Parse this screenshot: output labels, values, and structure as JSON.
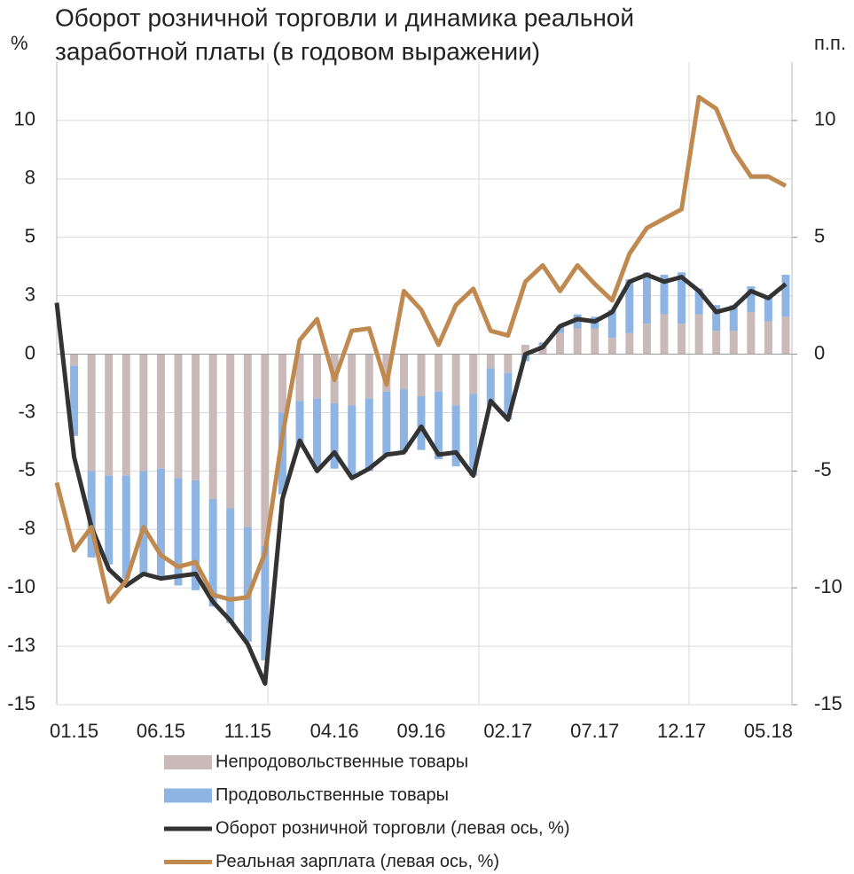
{
  "chart_data": {
    "type": "bar-line",
    "title": [
      "Оборот розничной торговли и динамика реальной",
      "заработной платы (в годовом выражении)"
    ],
    "ylabel": "%",
    "y2label": "п.п.",
    "categories": [
      null,
      "01.15",
      null,
      null,
      null,
      null,
      "06.15",
      null,
      null,
      null,
      null,
      "11.15",
      null,
      null,
      null,
      null,
      "04.16",
      null,
      null,
      null,
      null,
      "09.16",
      null,
      null,
      null,
      null,
      "02.17",
      null,
      null,
      null,
      null,
      "07.17",
      null,
      null,
      null,
      null,
      "12.17",
      null,
      null,
      null,
      null,
      "05.18",
      null
    ],
    "ylim": [
      -15,
      12.5
    ],
    "yticks": [
      -15,
      {
        "value": -12.5,
        "label": "-13"
      },
      -10,
      {
        "value": -7.5,
        "label": "-8"
      },
      -5,
      {
        "value": -2.5,
        "label": "-3"
      },
      0,
      {
        "value": 2.5,
        "label": "3"
      },
      5,
      {
        "value": 7.5,
        "label": "8"
      },
      10
    ],
    "y2lim": [
      -15,
      12.5
    ],
    "y2ticks": [
      -15,
      -10,
      -5,
      0,
      5,
      10
    ],
    "grid": true,
    "series": [
      {
        "name": "Непродовольственные товары",
        "kind": "bar",
        "axis": "y2",
        "color": "#c9b9b9",
        "values": [
          null,
          -0.5,
          -5.0,
          -5.2,
          -5.2,
          -5.0,
          -4.9,
          -5.3,
          -5.4,
          -6.2,
          -6.6,
          -7.4,
          -8.2,
          -2.5,
          -2.0,
          -1.9,
          -2.1,
          -2.2,
          -1.9,
          -1.6,
          -1.5,
          -1.8,
          -1.6,
          -2.2,
          -1.7,
          -0.6,
          -0.8,
          0.4,
          0.4,
          0.9,
          1.1,
          1.1,
          0.7,
          0.9,
          1.3,
          1.7,
          1.3,
          1.7,
          1.0,
          1.0,
          1.8,
          1.4,
          1.6
        ]
      },
      {
        "name": "Продовольственные товары",
        "kind": "bar",
        "axis": "y2",
        "color": "#8db4e2",
        "values": [
          null,
          -3.0,
          -3.7,
          -3.8,
          -4.4,
          -4.4,
          -4.6,
          -4.6,
          -4.7,
          -4.6,
          -4.9,
          -4.9,
          -4.9,
          -3.5,
          -2.0,
          -3.0,
          -2.8,
          -3.0,
          -3.1,
          -2.7,
          -2.7,
          -2.3,
          -2.9,
          -2.6,
          -3.5,
          -1.6,
          -2.0,
          -0.3,
          0.1,
          0.3,
          0.6,
          0.5,
          1.2,
          2.3,
          2.2,
          1.7,
          2.2,
          1.1,
          1.1,
          1.1,
          1.1,
          1.1,
          1.8
        ]
      },
      {
        "name": "Оборот розничной торговли (левая ось,  %)",
        "kind": "line",
        "color": "#333333",
        "values": [
          2.2,
          -4.4,
          -7.4,
          -9.2,
          -9.9,
          -9.4,
          -9.6,
          -9.5,
          -9.4,
          -10.6,
          -11.4,
          -12.4,
          -14.1,
          -6.2,
          -3.7,
          -5.0,
          -4.2,
          -5.3,
          -4.9,
          -4.3,
          -4.2,
          -3.1,
          -4.3,
          -4.2,
          -5.2,
          -2.0,
          -2.8,
          0.0,
          0.3,
          1.2,
          1.5,
          1.4,
          1.8,
          3.1,
          3.4,
          3.1,
          3.3,
          2.7,
          1.8,
          2.0,
          2.7,
          2.4,
          3.0
        ]
      },
      {
        "name": "Реальная зарплата (левая ось, %)",
        "kind": "line",
        "color": "#c0894f",
        "values": [
          -5.5,
          -8.4,
          -7.4,
          -10.6,
          -9.7,
          -7.4,
          -8.6,
          -9.1,
          -8.9,
          -10.3,
          -10.5,
          -10.4,
          -8.5,
          -3.5,
          0.6,
          1.5,
          -1.1,
          1.0,
          1.1,
          -1.3,
          2.7,
          1.9,
          0.4,
          2.1,
          2.8,
          1.0,
          0.8,
          3.1,
          3.8,
          2.7,
          3.8,
          3.0,
          2.3,
          4.3,
          5.4,
          5.8,
          6.2,
          11.0,
          10.5,
          8.7,
          7.6,
          7.6,
          7.2
        ]
      }
    ]
  }
}
